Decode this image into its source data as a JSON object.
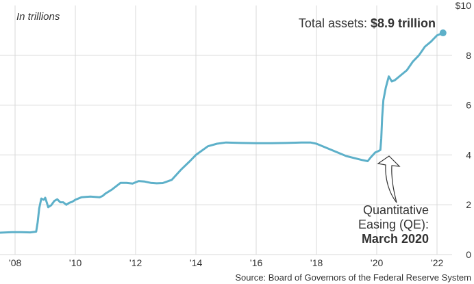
{
  "chart_data": {
    "type": "line",
    "title": "",
    "unit_note": "In trillions",
    "xlabel": "",
    "ylabel": "",
    "xlim": [
      2007.5,
      2022.5
    ],
    "ylim": [
      0,
      10
    ],
    "x_ticks": [
      2008,
      2010,
      2012,
      2014,
      2016,
      2018,
      2020,
      2022
    ],
    "x_tick_labels": [
      "’08",
      "’10",
      "’12",
      "’14",
      "’16",
      "’18",
      "’20",
      "’22"
    ],
    "y_ticks": [
      0,
      2,
      4,
      6,
      8,
      10
    ],
    "y_tick_labels": [
      "0",
      "2",
      "4",
      "6",
      "8",
      "$10"
    ],
    "grid": true,
    "series": [
      {
        "name": "Total assets",
        "color": "#5db0c9",
        "x": [
          2007.5,
          2007.9,
          2008.2,
          2008.5,
          2008.7,
          2008.75,
          2008.8,
          2008.87,
          2008.95,
          2009.0,
          2009.05,
          2009.1,
          2009.2,
          2009.3,
          2009.4,
          2009.5,
          2009.6,
          2009.7,
          2009.8,
          2009.9,
          2010.0,
          2010.2,
          2010.5,
          2010.8,
          2010.9,
          2011.0,
          2011.2,
          2011.5,
          2011.7,
          2011.9,
          2012.0,
          2012.1,
          2012.3,
          2012.5,
          2012.7,
          2012.9,
          2013.2,
          2013.5,
          2013.8,
          2014.0,
          2014.4,
          2014.7,
          2015.0,
          2015.5,
          2016.0,
          2016.5,
          2017.0,
          2017.5,
          2017.8,
          2018.0,
          2018.5,
          2019.0,
          2019.5,
          2019.7,
          2019.8,
          2019.95,
          2020.05,
          2020.12,
          2020.15,
          2020.18,
          2020.22,
          2020.3,
          2020.4,
          2020.5,
          2020.6,
          2020.8,
          2021.0,
          2021.2,
          2021.4,
          2021.6,
          2021.8,
          2022.0,
          2022.2
        ],
        "values": [
          0.88,
          0.9,
          0.9,
          0.89,
          0.92,
          1.3,
          1.85,
          2.25,
          2.2,
          2.28,
          2.1,
          1.9,
          1.98,
          2.15,
          2.22,
          2.1,
          2.1,
          2.0,
          2.08,
          2.12,
          2.2,
          2.3,
          2.33,
          2.3,
          2.35,
          2.45,
          2.6,
          2.88,
          2.88,
          2.85,
          2.9,
          2.95,
          2.93,
          2.88,
          2.86,
          2.87,
          3.0,
          3.4,
          3.75,
          4.0,
          4.35,
          4.45,
          4.5,
          4.48,
          4.47,
          4.47,
          4.48,
          4.5,
          4.5,
          4.45,
          4.2,
          3.95,
          3.8,
          3.75,
          3.9,
          4.1,
          4.15,
          4.2,
          4.65,
          5.5,
          6.2,
          6.7,
          7.15,
          6.95,
          7.0,
          7.2,
          7.4,
          7.75,
          8.0,
          8.35,
          8.55,
          8.8,
          8.9
        ]
      }
    ],
    "annotations": {
      "total_assets_label": "Total assets: ",
      "total_assets_value": "$8.9 trillion",
      "qe_line1": "Quantitative",
      "qe_line2": "Easing (QE):",
      "qe_line3": "March 2020",
      "qe_x": 2020.15,
      "qe_y": 4.2
    },
    "source": "Source: Board of Governors of the Federal Reserve System"
  }
}
